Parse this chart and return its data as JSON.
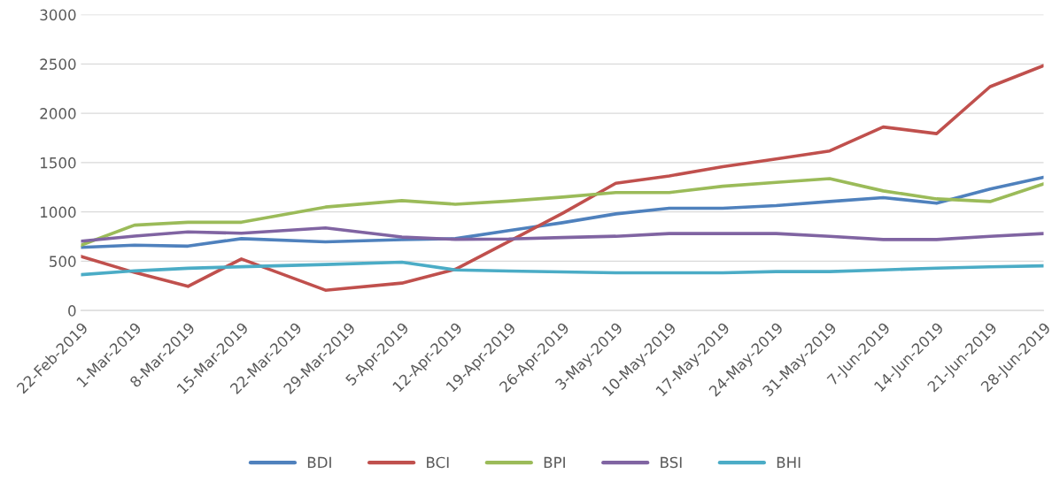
{
  "chart_data": {
    "type": "line",
    "x": [
      "2019-02-22",
      "2019-03-01",
      "2019-03-08",
      "2019-03-15",
      "2019-03-26",
      "2019-04-05",
      "2019-04-12",
      "2019-04-19",
      "2019-04-26",
      "2019-05-03",
      "2019-05-10",
      "2019-05-17",
      "2019-05-24",
      "2019-05-31",
      "2019-06-07",
      "2019-06-14",
      "2019-06-21",
      "2019-06-28"
    ],
    "series": [
      {
        "name": "BDI",
        "color": "#4f81bd",
        "values": [
          640,
          663,
          653,
          729,
          696,
          719,
          729,
          810,
          890,
          980,
          1037,
          1037,
          1064,
          1105,
          1145,
          1088,
          1233,
          1351
        ]
      },
      {
        "name": "BCI",
        "color": "#c0504d",
        "values": [
          549,
          386,
          245,
          523,
          206,
          278,
          418,
          700,
          985,
          1290,
          1365,
          1459,
          1537,
          1618,
          1861,
          1794,
          2270,
          2483
        ]
      },
      {
        "name": "BPI",
        "color": "#9bbb59",
        "values": [
          663,
          866,
          895,
          895,
          1049,
          1114,
          1078,
          1110,
          1150,
          1196,
          1196,
          1260,
          1300,
          1338,
          1213,
          1132,
          1105,
          1284
        ]
      },
      {
        "name": "BSI",
        "color": "#8064a2",
        "values": [
          703,
          755,
          797,
          784,
          837,
          745,
          722,
          725,
          740,
          753,
          780,
          780,
          780,
          753,
          720,
          720,
          753,
          780
        ]
      },
      {
        "name": "BHI",
        "color": "#4bacc6",
        "values": [
          363,
          402,
          428,
          444,
          467,
          490,
          412,
          400,
          392,
          382,
          382,
          382,
          395,
          395,
          412,
          429,
          443,
          453
        ]
      }
    ],
    "xlim": [
      "2019-02-22",
      "2019-06-28"
    ],
    "xticks": [
      {
        "value": "2019-02-22",
        "label": "22-Feb-2019"
      },
      {
        "value": "2019-03-01",
        "label": "1-Mar-2019"
      },
      {
        "value": "2019-03-08",
        "label": "8-Mar-2019"
      },
      {
        "value": "2019-03-15",
        "label": "15-Mar-2019"
      },
      {
        "value": "2019-03-22",
        "label": "22-Mar-2019"
      },
      {
        "value": "2019-03-29",
        "label": "29-Mar-2019"
      },
      {
        "value": "2019-04-05",
        "label": "5-Apr-2019"
      },
      {
        "value": "2019-04-12",
        "label": "12-Apr-2019"
      },
      {
        "value": "2019-04-19",
        "label": "19-Apr-2019"
      },
      {
        "value": "2019-04-26",
        "label": "26-Apr-2019"
      },
      {
        "value": "2019-05-03",
        "label": "3-May-2019"
      },
      {
        "value": "2019-05-10",
        "label": "10-May-2019"
      },
      {
        "value": "2019-05-17",
        "label": "17-May-2019"
      },
      {
        "value": "2019-05-24",
        "label": "24-May-2019"
      },
      {
        "value": "2019-05-31",
        "label": "31-May-2019"
      },
      {
        "value": "2019-06-07",
        "label": "7-Jun-2019"
      },
      {
        "value": "2019-06-14",
        "label": "14-Jun-2019"
      },
      {
        "value": "2019-06-21",
        "label": "21-Jun-2019"
      },
      {
        "value": "2019-06-28",
        "label": "28-Jun-2019"
      }
    ],
    "ylim": [
      0,
      3000
    ],
    "yticks": [
      0,
      500,
      1000,
      1500,
      2000,
      2500,
      3000
    ],
    "grid": "y",
    "legend": "bottom",
    "marker": "none",
    "line_style": "solid"
  }
}
